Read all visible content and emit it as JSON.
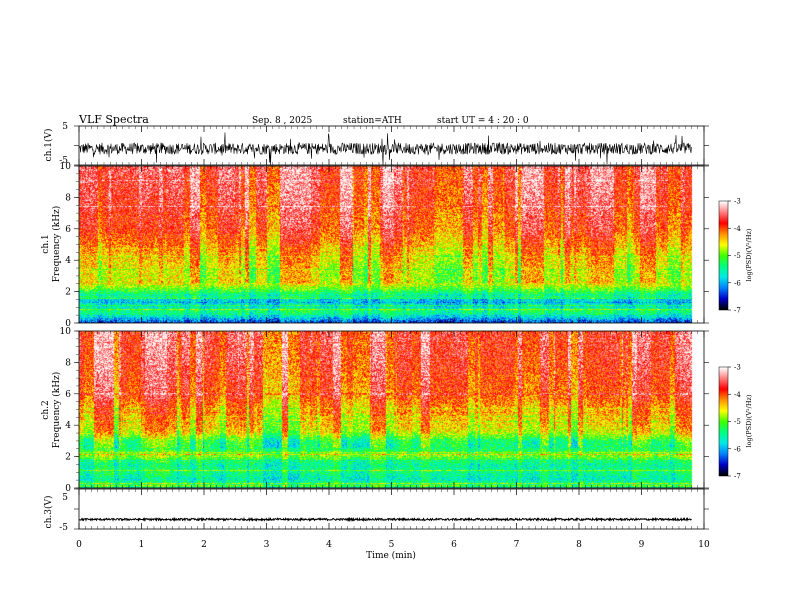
{
  "header": {
    "title": "VLF  Spectra",
    "date": "Sep. 8  , 2025",
    "station": "station=ATH",
    "start": "start  UT  =   4  : 20 : 0"
  },
  "chart_data": [
    {
      "id": "ch1-waveform",
      "type": "line",
      "ylabel": "ch.1(V)",
      "ylim": [
        -5,
        5
      ],
      "yticks": [
        "5",
        "-5"
      ],
      "xlim": [
        0,
        10
      ],
      "data_end_min": 9.8,
      "baseline": -0.8,
      "typical_amplitude": 1.5,
      "peak_amplitude": 4.5
    },
    {
      "id": "ch1-spectrogram",
      "type": "heatmap",
      "ylabel": "ch.1",
      "ylabel2": "Frequency  (kHz)",
      "ylim": [
        0,
        10
      ],
      "yticks": [
        "10",
        "8",
        "6",
        "4",
        "2",
        "0"
      ],
      "xlim": [
        0,
        10
      ],
      "data_end_min": 9.8,
      "colorbar": {
        "label": "log(PSD)(V²/Hz)",
        "range": [
          -7,
          -3
        ],
        "ticks": [
          "-3",
          "-4",
          "-5",
          "-6",
          "-7"
        ]
      },
      "profile": {
        "freq_khz": [
          0,
          0.25,
          0.5,
          0.75,
          1.0,
          1.5,
          2.0,
          2.5,
          3.0,
          4.0,
          5.0,
          6.0,
          8.0,
          10.0
        ],
        "log_psd": [
          -6.4,
          -6.0,
          -5.5,
          -5.4,
          -5.7,
          -5.9,
          -5.2,
          -4.6,
          -4.7,
          -4.5,
          -4.2,
          -3.9,
          -3.7,
          -3.6
        ]
      }
    },
    {
      "id": "ch2-spectrogram",
      "type": "heatmap",
      "ylabel": "ch.2",
      "ylabel2": "Frequency  (kHz)",
      "ylim": [
        0,
        10
      ],
      "yticks": [
        "10",
        "8",
        "6",
        "4",
        "2",
        "0"
      ],
      "xlim": [
        0,
        10
      ],
      "data_end_min": 9.8,
      "colorbar": {
        "label": "log(PSD)(V²/Hz)",
        "range": [
          -7,
          -3
        ],
        "ticks": [
          "-3",
          "-4",
          "-5",
          "-6",
          "-7"
        ]
      },
      "profile": {
        "freq_khz": [
          0,
          0.25,
          0.5,
          1.0,
          1.5,
          2.0,
          2.5,
          3.0,
          3.5,
          4.0,
          5.0,
          6.0,
          8.0,
          10.0
        ],
        "log_psd": [
          -5.6,
          -5.3,
          -5.6,
          -5.4,
          -5.5,
          -4.9,
          -5.3,
          -5.2,
          -4.6,
          -4.4,
          -4.2,
          -3.9,
          -3.7,
          -3.6
        ]
      }
    },
    {
      "id": "ch3-waveform",
      "type": "line",
      "ylabel": "ch.3(V)",
      "ylim": [
        -5,
        5
      ],
      "yticks": [
        "5",
        "0",
        "-5"
      ],
      "xlim": [
        0,
        10
      ],
      "data_end_min": 9.8,
      "baseline": -2.6,
      "typical_amplitude": 0.25,
      "peak_amplitude": 0.3
    }
  ],
  "xaxis": {
    "label": "Time  (min)",
    "ticks": [
      "0",
      "1",
      "2",
      "3",
      "4",
      "5",
      "6",
      "7",
      "8",
      "9",
      "10"
    ]
  },
  "colors": {
    "scale": [
      "#000000",
      "#0000c8",
      "#0080ff",
      "#00e8e8",
      "#00ff80",
      "#40ff00",
      "#ffff00",
      "#ff9000",
      "#ff0000"
    ]
  }
}
